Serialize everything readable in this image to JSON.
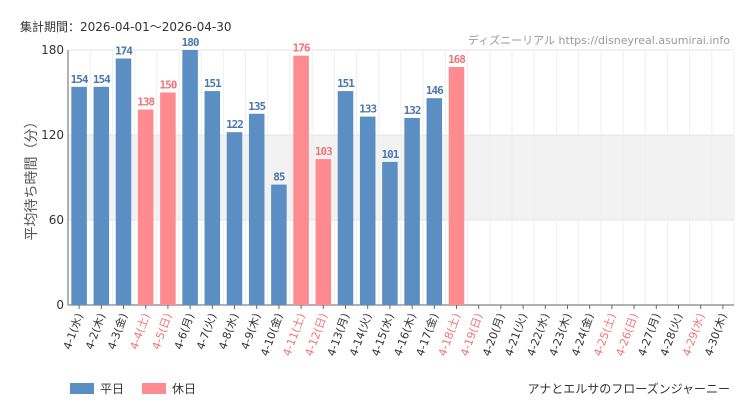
{
  "header": {
    "period_label": "集計期間：2026-04-01～2026-04-30",
    "site_credit": "ディズニーリアル https://disneyreal.asumirai.info"
  },
  "footer": {
    "ride_name": "アナとエルサのフローズンジャーニー"
  },
  "legend": [
    {
      "label": "平日",
      "color": "#5b8fc4"
    },
    {
      "label": "休日",
      "color": "#ff8a8f"
    }
  ],
  "colors": {
    "weekday": "#5b8fc4",
    "holiday": "#ff8a8f",
    "holiday_text": "#f07378",
    "band": "#f2f2f2",
    "grid": "#e4e4e4"
  },
  "chart_data": {
    "type": "bar",
    "title": "",
    "xlabel": "",
    "ylabel": "平均待ち時間（分）",
    "ylim": [
      0,
      180
    ],
    "yticks": [
      0,
      60,
      120,
      180
    ],
    "shaded_band": [
      60,
      120
    ],
    "legend_position": "bottom-left",
    "categories": [
      "4-1(水)",
      "4-2(木)",
      "4-3(金)",
      "4-4(土)",
      "4-5(日)",
      "4-6(月)",
      "4-7(火)",
      "4-8(水)",
      "4-9(木)",
      "4-10(金)",
      "4-11(土)",
      "4-12(日)",
      "4-13(月)",
      "4-14(火)",
      "4-15(水)",
      "4-16(木)",
      "4-17(金)",
      "4-18(土)",
      "4-19(日)",
      "4-20(月)",
      "4-21(火)",
      "4-22(水)",
      "4-23(木)",
      "4-24(金)",
      "4-25(土)",
      "4-26(日)",
      "4-27(月)",
      "4-28(火)",
      "4-29(水)",
      "4-30(木)"
    ],
    "values": [
      154,
      154,
      174,
      138,
      150,
      180,
      151,
      122,
      135,
      85,
      176,
      103,
      151,
      133,
      101,
      132,
      146,
      168,
      null,
      null,
      null,
      null,
      null,
      null,
      null,
      null,
      null,
      null,
      null,
      null
    ],
    "day_type": [
      "平日",
      "平日",
      "平日",
      "休日",
      "休日",
      "平日",
      "平日",
      "平日",
      "平日",
      "平日",
      "休日",
      "休日",
      "平日",
      "平日",
      "平日",
      "平日",
      "平日",
      "休日",
      "休日",
      "平日",
      "平日",
      "平日",
      "平日",
      "平日",
      "休日",
      "休日",
      "平日",
      "平日",
      "休日",
      "平日"
    ]
  }
}
